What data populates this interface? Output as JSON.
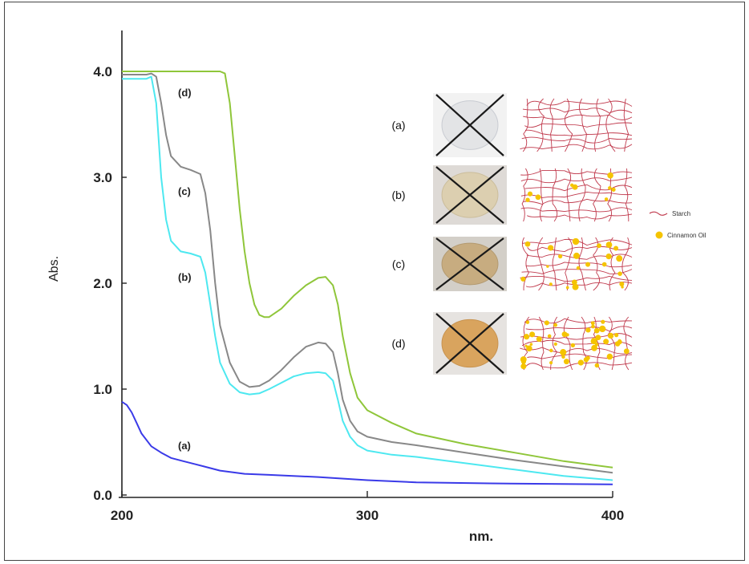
{
  "chart_data": {
    "type": "line",
    "xlabel": "nm.",
    "ylabel": "Abs.",
    "xlim": [
      200,
      400
    ],
    "ylim": [
      0,
      4.2
    ],
    "xticks": [
      "200",
      "300",
      "400"
    ],
    "yticks": [
      "0.0",
      "1.0",
      "2.0",
      "3.0",
      "4.0"
    ],
    "grid": false,
    "series": [
      {
        "name": "(a)",
        "color": "#3a3ae8",
        "x": [
          200,
          202,
          204,
          206,
          208,
          212,
          216,
          220,
          225,
          230,
          240,
          250,
          260,
          280,
          300,
          320,
          350,
          400
        ],
        "y": [
          0.88,
          0.85,
          0.78,
          0.68,
          0.58,
          0.46,
          0.4,
          0.35,
          0.32,
          0.29,
          0.23,
          0.2,
          0.19,
          0.17,
          0.14,
          0.12,
          0.11,
          0.1
        ]
      },
      {
        "name": "(b)",
        "color": "#4de8f0",
        "x": [
          200,
          210,
          212,
          214,
          216,
          218,
          220,
          224,
          228,
          232,
          234,
          236,
          238,
          240,
          244,
          248,
          252,
          256,
          260,
          265,
          270,
          275,
          280,
          283,
          286,
          288,
          290,
          293,
          296,
          300,
          310,
          320,
          340,
          360,
          380,
          400
        ],
        "y": [
          3.93,
          3.93,
          3.95,
          3.7,
          3.0,
          2.6,
          2.4,
          2.3,
          2.28,
          2.25,
          2.1,
          1.8,
          1.5,
          1.25,
          1.05,
          0.97,
          0.95,
          0.96,
          1.0,
          1.06,
          1.12,
          1.15,
          1.16,
          1.15,
          1.08,
          0.9,
          0.7,
          0.55,
          0.47,
          0.42,
          0.38,
          0.36,
          0.3,
          0.24,
          0.18,
          0.14
        ]
      },
      {
        "name": "(c)",
        "color": "#888888",
        "x": [
          200,
          210,
          212,
          214,
          216,
          218,
          220,
          224,
          228,
          232,
          234,
          236,
          238,
          240,
          244,
          248,
          252,
          256,
          260,
          265,
          270,
          275,
          280,
          283,
          286,
          288,
          290,
          293,
          296,
          300,
          310,
          320,
          340,
          360,
          380,
          400
        ],
        "y": [
          3.97,
          3.97,
          3.98,
          3.95,
          3.7,
          3.4,
          3.2,
          3.1,
          3.07,
          3.03,
          2.85,
          2.5,
          2.0,
          1.6,
          1.25,
          1.07,
          1.02,
          1.03,
          1.08,
          1.18,
          1.3,
          1.4,
          1.44,
          1.43,
          1.35,
          1.15,
          0.9,
          0.7,
          0.6,
          0.55,
          0.5,
          0.47,
          0.4,
          0.33,
          0.27,
          0.21
        ]
      },
      {
        "name": "(d)",
        "color": "#8fc63a",
        "x": [
          200,
          240,
          242,
          244,
          246,
          248,
          250,
          252,
          254,
          256,
          258,
          260,
          265,
          270,
          275,
          280,
          283,
          286,
          288,
          290,
          293,
          296,
          300,
          310,
          320,
          340,
          360,
          380,
          400
        ],
        "y": [
          4.0,
          4.0,
          3.98,
          3.7,
          3.2,
          2.7,
          2.3,
          2.0,
          1.8,
          1.7,
          1.68,
          1.68,
          1.76,
          1.88,
          1.98,
          2.05,
          2.06,
          1.98,
          1.8,
          1.5,
          1.15,
          0.92,
          0.8,
          0.68,
          0.58,
          0.48,
          0.4,
          0.32,
          0.26
        ]
      }
    ],
    "annotations": [
      "(a)",
      "(b)",
      "(c)",
      "(d)"
    ]
  },
  "inset": {
    "rows": [
      {
        "label": "(a)",
        "film_color": "#e3e4e6",
        "film_border": "#c9ccd2",
        "bg": "#f2f2f2",
        "oil_dots": 0
      },
      {
        "label": "(b)",
        "film_color": "#dccfb0",
        "film_border": "#cbbd9b",
        "bg": "#dedad6",
        "oil_dots": 9
      },
      {
        "label": "(c)",
        "film_color": "#c7ac80",
        "film_border": "#b39a70",
        "bg": "#d3cfc8",
        "oil_dots": 22
      },
      {
        "label": "(d)",
        "film_color": "#d9a45e",
        "film_border": "#c8934f",
        "bg": "#e6e3e0",
        "oil_dots": 45
      }
    ],
    "legend": {
      "starch_label": "Starch",
      "starch_color": "#c0394c",
      "oil_label": "Cinnamon Oil",
      "oil_color": "#f5c400"
    }
  }
}
